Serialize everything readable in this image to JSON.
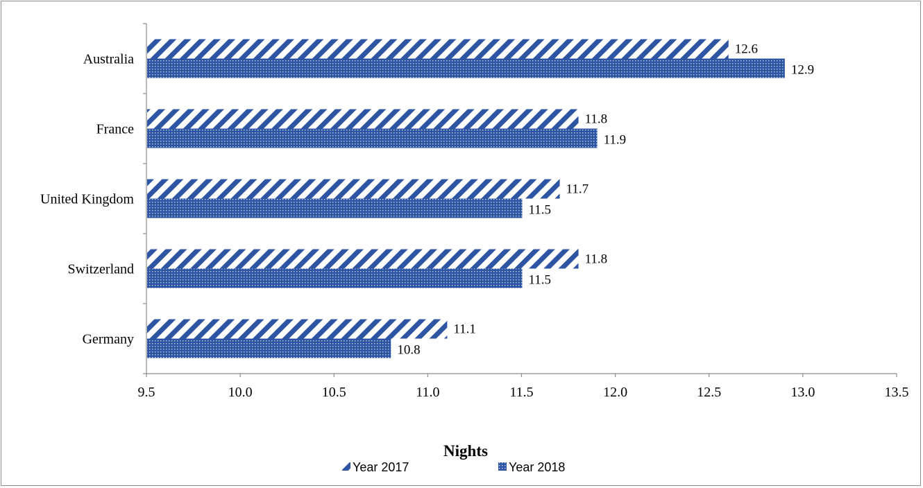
{
  "chart_data": {
    "type": "bar",
    "orientation": "horizontal",
    "categories": [
      "Australia",
      "France",
      "United Kingdom",
      "Switzerland",
      "Germany"
    ],
    "series": [
      {
        "name": "Year 2017",
        "values": [
          12.6,
          11.8,
          11.7,
          11.8,
          11.1
        ],
        "pattern": "diagonal-stripes",
        "color": "#2e55a3"
      },
      {
        "name": "Year 2018",
        "values": [
          12.9,
          11.9,
          11.5,
          11.5,
          10.8
        ],
        "pattern": "dots",
        "color": "#2e55a3"
      }
    ],
    "data_labels": {
      "Year 2017": [
        "12.6",
        "11.8",
        "11.7",
        "11.8",
        "11.1"
      ],
      "Year 2018": [
        "12.9",
        "11.9",
        "11.5",
        "11.5",
        "10.8"
      ]
    },
    "xlabel": "Nights",
    "ylabel": "",
    "xlim": [
      9.5,
      13.5
    ],
    "xticks": [
      "9.5",
      "10.0",
      "10.5",
      "11.0",
      "11.5",
      "12.0",
      "12.5",
      "13.0",
      "13.5"
    ],
    "grid": false,
    "legend": "bottom"
  }
}
